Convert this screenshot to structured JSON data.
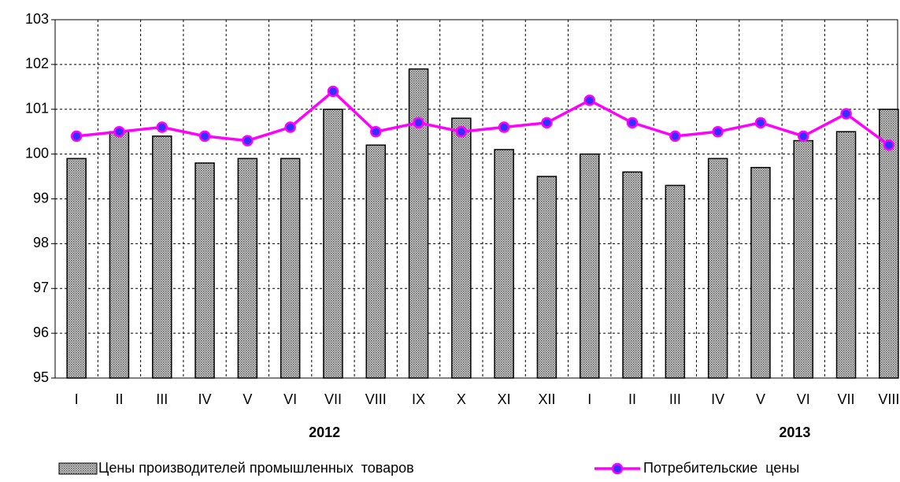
{
  "chart_data": {
    "type": "bar",
    "categories": [
      "I",
      "II",
      "III",
      "IV",
      "V",
      "VI",
      "VII",
      "VIII",
      "IX",
      "X",
      "XI",
      "XII",
      "I",
      "II",
      "III",
      "IV",
      "V",
      "VI",
      "VII",
      "VIII"
    ],
    "year_labels": [
      "2012",
      "2013"
    ],
    "series": [
      {
        "name": "Цены производителей промышленных  товаров",
        "type": "bar",
        "color": "#a0a0a0",
        "values": [
          99.9,
          100.5,
          100.4,
          99.8,
          99.9,
          99.9,
          101.0,
          100.2,
          101.9,
          100.8,
          100.1,
          99.5,
          100.0,
          99.6,
          99.3,
          99.9,
          99.7,
          100.3,
          100.5,
          101.0
        ]
      },
      {
        "name": "Потребительские  цены",
        "type": "line",
        "color": "#ff00ff",
        "marker_color": "#3030ff",
        "values": [
          100.4,
          100.5,
          100.6,
          100.4,
          100.3,
          100.6,
          101.4,
          100.5,
          100.7,
          100.5,
          100.6,
          100.7,
          101.2,
          100.7,
          100.4,
          100.5,
          100.7,
          100.4,
          100.9,
          100.2
        ]
      }
    ],
    "ylim": [
      95,
      103
    ],
    "yticks": [
      95,
      96,
      97,
      98,
      99,
      100,
      101,
      102,
      103
    ],
    "grid": true
  }
}
